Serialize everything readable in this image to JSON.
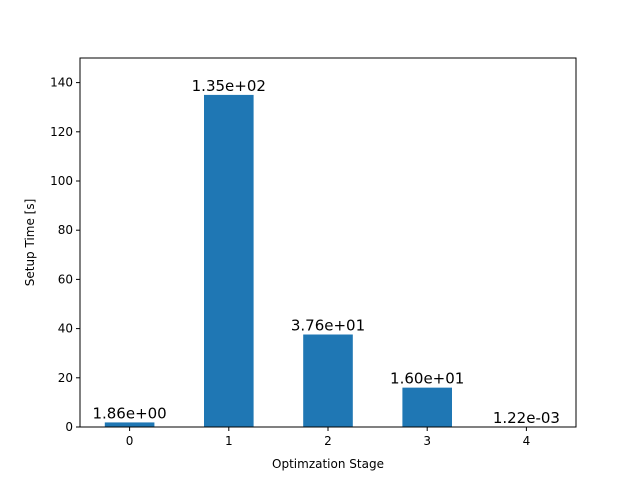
{
  "chart_data": {
    "type": "bar",
    "categories": [
      "0",
      "1",
      "2",
      "3",
      "4"
    ],
    "values": [
      1.86,
      135,
      37.6,
      16.0,
      0.00122
    ],
    "data_labels": [
      "1.86e+00",
      "1.35e+02",
      "3.76e+01",
      "1.60e+01",
      "1.22e-03"
    ],
    "title": "",
    "xlabel": "Optimzation Stage",
    "ylabel": "Setup Time [s]",
    "ylim": [
      0,
      150
    ],
    "yticks": [
      0,
      20,
      40,
      60,
      80,
      100,
      120,
      140
    ],
    "grid": false,
    "bar_color": "#1f77b4"
  }
}
